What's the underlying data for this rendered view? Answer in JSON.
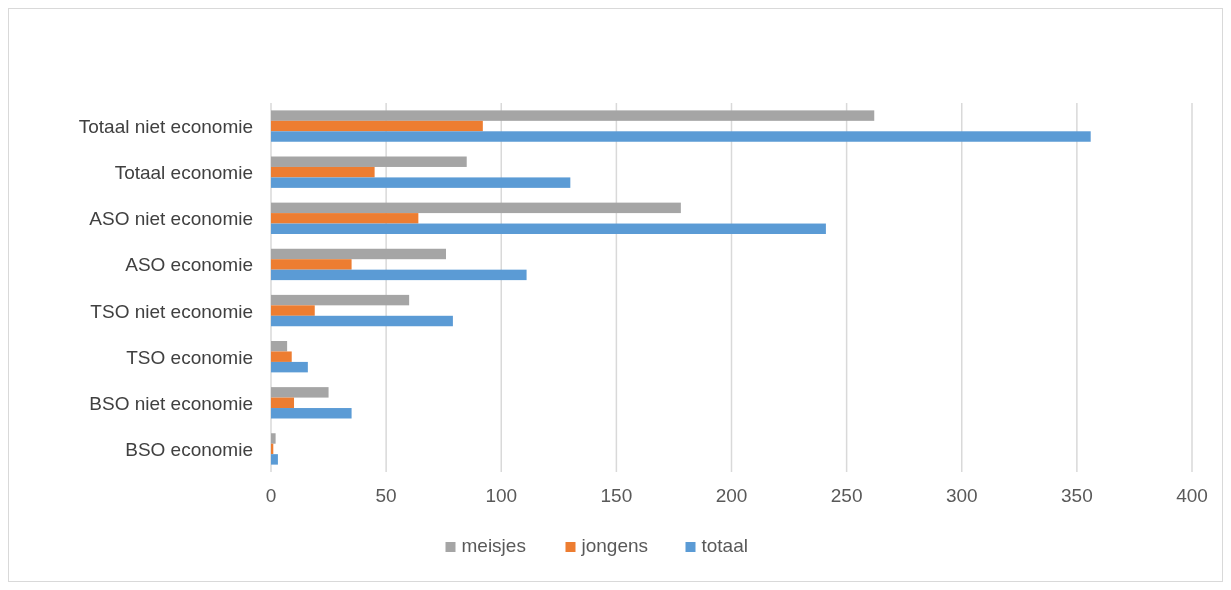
{
  "chart_data": {
    "type": "bar",
    "orientation": "horizontal",
    "categories": [
      "Totaal niet economie",
      "Totaal economie",
      "ASO niet economie",
      "ASO economie",
      "TSO niet economie",
      "TSO economie",
      "BSO niet economie",
      "BSO economie"
    ],
    "series": [
      {
        "name": "meisjes",
        "color": "#a5a5a5",
        "values": [
          262,
          85,
          178,
          76,
          60,
          7,
          25,
          2
        ]
      },
      {
        "name": "jongens",
        "color": "#ed7d31",
        "values": [
          92,
          45,
          64,
          35,
          19,
          9,
          10,
          1
        ]
      },
      {
        "name": "totaal",
        "color": "#5b9bd5",
        "values": [
          356,
          130,
          241,
          111,
          79,
          16,
          35,
          3
        ]
      }
    ],
    "xlim": [
      0,
      400
    ],
    "xticks": [
      0,
      50,
      100,
      150,
      200,
      250,
      300,
      350,
      400
    ],
    "grid": "x",
    "legend": "bottom"
  }
}
